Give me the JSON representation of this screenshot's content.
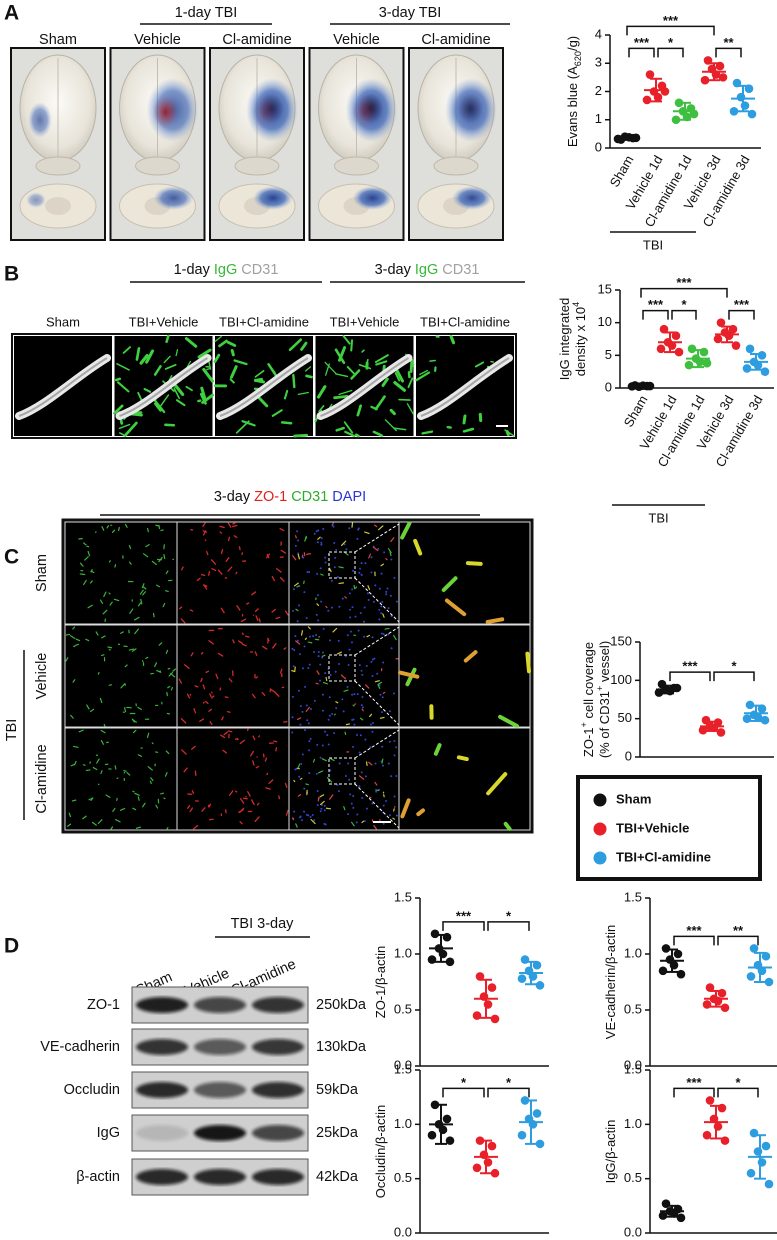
{
  "figure": {
    "panel_labels": [
      "A",
      "B",
      "C",
      "D"
    ],
    "panel_a": {
      "groups": [
        "1-day TBI",
        "3-day TBI"
      ],
      "columns": [
        "Sham",
        "Vehicle",
        "Cl-amidine",
        "Vehicle",
        "Cl-amidine"
      ]
    },
    "panel_b": {
      "groups": [
        [
          "1-day ",
          {
            "text": "IgG",
            "color": "#33b833"
          },
          {
            "text": " CD31",
            "color": "#a0a0a0"
          }
        ],
        [
          "3-day ",
          {
            "text": "IgG",
            "color": "#33b833"
          },
          {
            "text": " CD31",
            "color": "#a0a0a0"
          }
        ]
      ],
      "columns": [
        "Sham",
        "TBI+Vehicle",
        "TBI+Cl-amidine",
        "TBI+Vehicle",
        "TBI+Cl-amidine"
      ]
    },
    "panel_c": {
      "title": [
        "3-day ",
        {
          "text": "ZO-1",
          "color": "#e0201e"
        },
        {
          "text": " CD31",
          "color": "#2cae2c"
        },
        {
          "text": " DAPI",
          "color": "#2b36d0"
        }
      ],
      "rows": [
        "Sham",
        "Vehicle",
        "Cl-amidine"
      ],
      "group": "TBI"
    },
    "panel_d": {
      "group": "TBI 3-day",
      "lanes": [
        "Sham",
        "Vehicle",
        "Cl-amidine"
      ],
      "proteins": [
        "ZO-1",
        "VE-cadherin",
        "Occludin",
        "IgG",
        "β-actin"
      ],
      "sizes": [
        "250kDa",
        "130kDa",
        "59kDa",
        "25kDa",
        "42kDa"
      ]
    },
    "legend": {
      "entries": [
        {
          "name": "Sham",
          "color": "#111111"
        },
        {
          "name": "TBI+Vehicle",
          "color": "#e8202a"
        },
        {
          "name": "TBI+Cl-amidine",
          "color": "#2d9de0"
        }
      ]
    }
  },
  "chart_data": [
    {
      "type": "dot",
      "ylabel": [
        [
          "Evans blue (A",
          {
            "text": "620",
            "pos": "sub"
          },
          "/g)"
        ]
      ],
      "ylim": [
        0,
        4
      ],
      "yticks": [
        0,
        1,
        2,
        3,
        4
      ],
      "categories": [
        "Sham",
        "Vehicle 1d",
        "Cl-amidine 1d",
        "Vehicle 3d",
        "Cl-amidine 3d"
      ],
      "group_label": "TBI",
      "groups": [
        {
          "color": "#111111",
          "points": [
            0.3,
            0.35,
            0.4,
            0.38,
            0.32,
            0.36
          ],
          "mean": 0.35,
          "sd": 0.05
        },
        {
          "color": "#e8202a",
          "points": [
            2.6,
            2.2,
            2.0,
            1.8,
            1.7,
            2.0
          ],
          "mean": 2.05,
          "sd": 0.4
        },
        {
          "color": "#3fbf3f",
          "points": [
            1.6,
            1.4,
            1.3,
            1.1,
            1.0,
            1.2
          ],
          "mean": 1.3,
          "sd": 0.3
        },
        {
          "color": "#e8202a",
          "points": [
            3.1,
            2.9,
            2.8,
            2.6,
            2.4,
            2.5
          ],
          "mean": 2.7,
          "sd": 0.3
        },
        {
          "color": "#2d9de0",
          "points": [
            2.3,
            2.1,
            1.8,
            1.5,
            1.3,
            1.2
          ],
          "mean": 1.75,
          "sd": 0.45
        }
      ],
      "brackets": [
        {
          "pair": [
            0,
            1
          ],
          "label": "***"
        },
        {
          "pair": [
            1,
            2
          ],
          "label": "*"
        },
        {
          "pair": [
            3,
            4
          ],
          "label": "**"
        },
        {
          "pair": [
            0,
            3
          ],
          "label": "***"
        }
      ]
    },
    {
      "type": "dot",
      "ylabel": [
        [
          "IgG integrated"
        ],
        [
          "density x 10",
          {
            "text": "4",
            "pos": "sup"
          }
        ]
      ],
      "ylim": [
        0,
        15
      ],
      "yticks": [
        0,
        5,
        10,
        15
      ],
      "categories": [
        "Sham",
        "Vehicle 1d",
        "Cl-amidine 1d",
        "Vehicle 3d",
        "Cl-amidine 3d"
      ],
      "group_label": "TBI",
      "groups": [
        {
          "color": "#111111",
          "points": [
            0.4,
            0.3,
            0.2,
            0.35,
            0.25,
            0.3
          ],
          "mean": 0.3,
          "sd": 0.1
        },
        {
          "color": "#e8202a",
          "points": [
            9,
            8,
            7,
            6.5,
            6,
            5.5
          ],
          "mean": 7,
          "sd": 1.5
        },
        {
          "color": "#3fbf3f",
          "points": [
            6,
            5.5,
            4.5,
            4,
            3.5,
            3.8
          ],
          "mean": 4.5,
          "sd": 1.3
        },
        {
          "color": "#e8202a",
          "points": [
            10,
            9,
            8.5,
            8,
            7.5,
            6.5
          ],
          "mean": 8.2,
          "sd": 1.2
        },
        {
          "color": "#2d9de0",
          "points": [
            6,
            5,
            4,
            3.5,
            3,
            2.5
          ],
          "mean": 4,
          "sd": 1.2
        }
      ],
      "brackets": [
        {
          "pair": [
            0,
            1
          ],
          "label": "***"
        },
        {
          "pair": [
            1,
            2
          ],
          "label": "*"
        },
        {
          "pair": [
            3,
            4
          ],
          "label": "***"
        },
        {
          "pair": [
            0,
            3
          ],
          "label": "***"
        }
      ]
    },
    {
      "type": "dot",
      "ylabel": [
        [
          "ZO-1",
          {
            "text": "+",
            "pos": "sup"
          },
          " cell coverage"
        ],
        [
          "(% of CD31",
          {
            "text": "+",
            "pos": "sup"
          },
          " vessel)"
        ]
      ],
      "ylim": [
        0,
        150
      ],
      "yticks": [
        0,
        50,
        100,
        150
      ],
      "categories": [
        null,
        null,
        null
      ],
      "groups": [
        {
          "color": "#111111",
          "points": [
            95,
            90,
            88,
            86,
            84,
            90
          ],
          "mean": 88,
          "sd": 5
        },
        {
          "color": "#e8202a",
          "points": [
            48,
            45,
            40,
            38,
            35,
            32
          ],
          "mean": 40,
          "sd": 6
        },
        {
          "color": "#2d9de0",
          "points": [
            68,
            63,
            55,
            52,
            50,
            48
          ],
          "mean": 57,
          "sd": 10
        }
      ],
      "brackets": [
        {
          "pair": [
            0,
            1
          ],
          "label": "***"
        },
        {
          "pair": [
            1,
            2
          ],
          "label": "*"
        }
      ]
    },
    {
      "type": "dot",
      "ylabel": [
        [
          "ZO-1/β-actin"
        ]
      ],
      "ylim": [
        0,
        1.5
      ],
      "yticks": [
        {
          "value": 0,
          "label": "0.0"
        },
        0.5,
        {
          "value": 1,
          "label": "1.0"
        },
        1.5
      ],
      "categories": [
        null,
        null,
        null
      ],
      "groups": [
        {
          "color": "#111111",
          "points": [
            1.18,
            1.15,
            1.05,
            1.0,
            0.95,
            0.93
          ],
          "mean": 1.05,
          "sd": 0.12
        },
        {
          "color": "#e8202a",
          "points": [
            0.8,
            0.7,
            0.62,
            0.55,
            0.45,
            0.42
          ],
          "mean": 0.6,
          "sd": 0.17
        },
        {
          "color": "#2d9de0",
          "points": [
            0.95,
            0.9,
            0.85,
            0.8,
            0.78,
            0.72
          ],
          "mean": 0.83,
          "sd": 0.1
        }
      ],
      "brackets": [
        {
          "pair": [
            0,
            1
          ],
          "label": "***"
        },
        {
          "pair": [
            1,
            2
          ],
          "label": "*"
        }
      ]
    },
    {
      "type": "dot",
      "ylabel": [
        [
          "VE-cadherin/β-actin"
        ]
      ],
      "ylim": [
        0,
        1.5
      ],
      "yticks": [
        {
          "value": 0,
          "label": "0.0"
        },
        0.5,
        {
          "value": 1,
          "label": "1.0"
        },
        1.5
      ],
      "categories": [
        null,
        null,
        null
      ],
      "groups": [
        {
          "color": "#111111",
          "points": [
            1.05,
            1.0,
            0.95,
            0.9,
            0.85,
            0.82
          ],
          "mean": 0.94,
          "sd": 0.1
        },
        {
          "color": "#e8202a",
          "points": [
            0.7,
            0.65,
            0.6,
            0.58,
            0.55,
            0.52
          ],
          "mean": 0.6,
          "sd": 0.07
        },
        {
          "color": "#2d9de0",
          "points": [
            1.05,
            0.98,
            0.9,
            0.85,
            0.8,
            0.75
          ],
          "mean": 0.88,
          "sd": 0.13
        }
      ],
      "brackets": [
        {
          "pair": [
            0,
            1
          ],
          "label": "***"
        },
        {
          "pair": [
            1,
            2
          ],
          "label": "**"
        }
      ]
    },
    {
      "type": "dot",
      "ylabel": [
        [
          "Occludin/β-actin"
        ]
      ],
      "ylim": [
        0,
        1.5
      ],
      "yticks": [
        {
          "value": 0,
          "label": "0.0"
        },
        0.5,
        {
          "value": 1,
          "label": "1.0"
        },
        1.5
      ],
      "categories": [
        null,
        null,
        null
      ],
      "groups": [
        {
          "color": "#111111",
          "points": [
            1.18,
            1.05,
            1.0,
            0.95,
            0.9,
            0.85
          ],
          "mean": 1.0,
          "sd": 0.18
        },
        {
          "color": "#e8202a",
          "points": [
            0.85,
            0.8,
            0.72,
            0.65,
            0.6,
            0.55
          ],
          "mean": 0.7,
          "sd": 0.15
        },
        {
          "color": "#2d9de0",
          "points": [
            1.22,
            1.1,
            1.05,
            1.0,
            0.9,
            0.82
          ],
          "mean": 1.02,
          "sd": 0.2
        }
      ],
      "brackets": [
        {
          "pair": [
            0,
            1
          ],
          "label": "*"
        },
        {
          "pair": [
            1,
            2
          ],
          "label": "*"
        }
      ]
    },
    {
      "type": "dot",
      "ylabel": [
        [
          "IgG/β-actin"
        ]
      ],
      "ylim": [
        0,
        1.5
      ],
      "yticks": [
        {
          "value": 0,
          "label": "0.0"
        },
        0.5,
        {
          "value": 1,
          "label": "1.0"
        },
        1.5
      ],
      "categories": [
        null,
        null,
        null
      ],
      "groups": [
        {
          "color": "#111111",
          "points": [
            0.27,
            0.22,
            0.2,
            0.18,
            0.16,
            0.14
          ],
          "mean": 0.2,
          "sd": 0.05
        },
        {
          "color": "#e8202a",
          "points": [
            1.22,
            1.15,
            1.05,
            0.98,
            0.9,
            0.85
          ],
          "mean": 1.02,
          "sd": 0.15
        },
        {
          "color": "#2d9de0",
          "points": [
            0.92,
            0.8,
            0.75,
            0.65,
            0.55,
            0.45
          ],
          "mean": 0.7,
          "sd": 0.2
        }
      ],
      "brackets": [
        {
          "pair": [
            0,
            1
          ],
          "label": "***"
        },
        {
          "pair": [
            1,
            2
          ],
          "label": "*"
        }
      ]
    }
  ]
}
